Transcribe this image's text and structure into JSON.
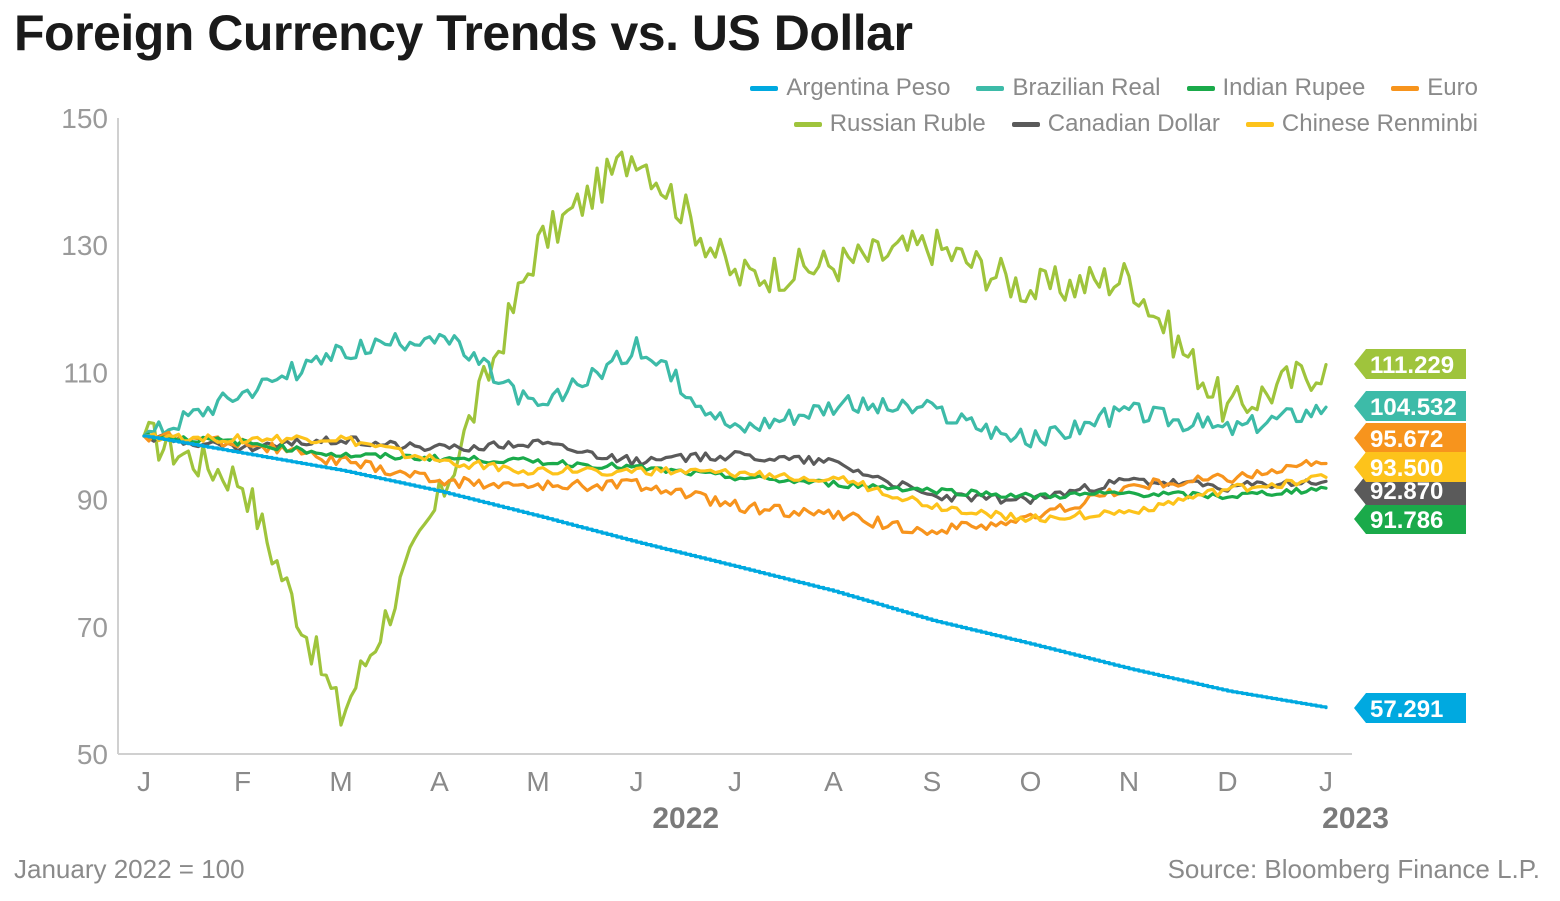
{
  "title": "Foreign Currency Trends vs. US Dollar",
  "footnote": "January 2022 = 100",
  "source": "Source: Bloomberg Finance L.P.",
  "chart_data": {
    "type": "line",
    "ylim": [
      50,
      150
    ],
    "yticks": [
      50,
      70,
      90,
      110,
      130,
      150
    ],
    "grid": false,
    "legend": "top-right",
    "month_labels": [
      "J",
      "F",
      "M",
      "A",
      "M",
      "J",
      "J",
      "A",
      "S",
      "O",
      "N",
      "D",
      "J"
    ],
    "year_labels": [
      "2022",
      "2023"
    ],
    "x_months": [
      0,
      1,
      2,
      3,
      4,
      5,
      6,
      7,
      8,
      9,
      10,
      11,
      12
    ],
    "series": [
      {
        "name": "Argentina Peso",
        "color": "#00a9e0",
        "end_label": "57.291",
        "end_value": 57.291,
        "values": [
          100,
          97.3,
          94.6,
          91.3,
          87.4,
          83.3,
          79.5,
          75.6,
          71.0,
          67.3,
          63.4,
          59.9,
          57.291
        ]
      },
      {
        "name": "Brazilian Real",
        "color": "#3dbba8",
        "end_label": "104.532",
        "end_value": 104.532,
        "values": [
          100,
          107,
          113,
          116,
          104,
          114,
          101,
          105,
          104,
          99,
          104,
          101,
          104.532
        ]
      },
      {
        "name": "Indian Rupee",
        "color": "#1aaa4a",
        "end_label": "91.786",
        "end_value": 91.786,
        "values": [
          100,
          99,
          97,
          96.5,
          96,
          95,
          93.5,
          92.5,
          91.5,
          90.5,
          91,
          90.5,
          91.786
        ]
      },
      {
        "name": "Euro",
        "color": "#f7941d",
        "end_label": "95.672",
        "end_value": 95.672,
        "values": [
          100,
          99,
          96,
          93,
          92,
          92.5,
          89,
          87.5,
          85,
          87,
          92,
          93.5,
          95.672
        ]
      },
      {
        "name": "Russian Ruble",
        "color": "#9fc43c",
        "end_label": "111.229",
        "end_value": 111.229,
        "values": [
          100,
          93,
          56,
          90,
          130,
          145,
          125,
          127,
          130,
          123,
          125,
          104,
          111.229
        ]
      },
      {
        "name": "Canadian Dollar",
        "color": "#5a5a5a",
        "end_label": "92.870",
        "end_value": 92.87,
        "values": [
          100,
          98,
          99.5,
          98,
          99,
          96,
          97,
          96,
          90.5,
          90,
          93,
          92,
          92.87
        ]
      },
      {
        "name": "Chinese Renminbi",
        "color": "#fdc31b",
        "end_label": "93.500",
        "end_value": 93.5,
        "values": [
          100,
          99.5,
          99.5,
          96,
          94.5,
          94.5,
          94,
          93.5,
          89,
          87,
          88,
          91.5,
          93.5
        ]
      }
    ]
  }
}
